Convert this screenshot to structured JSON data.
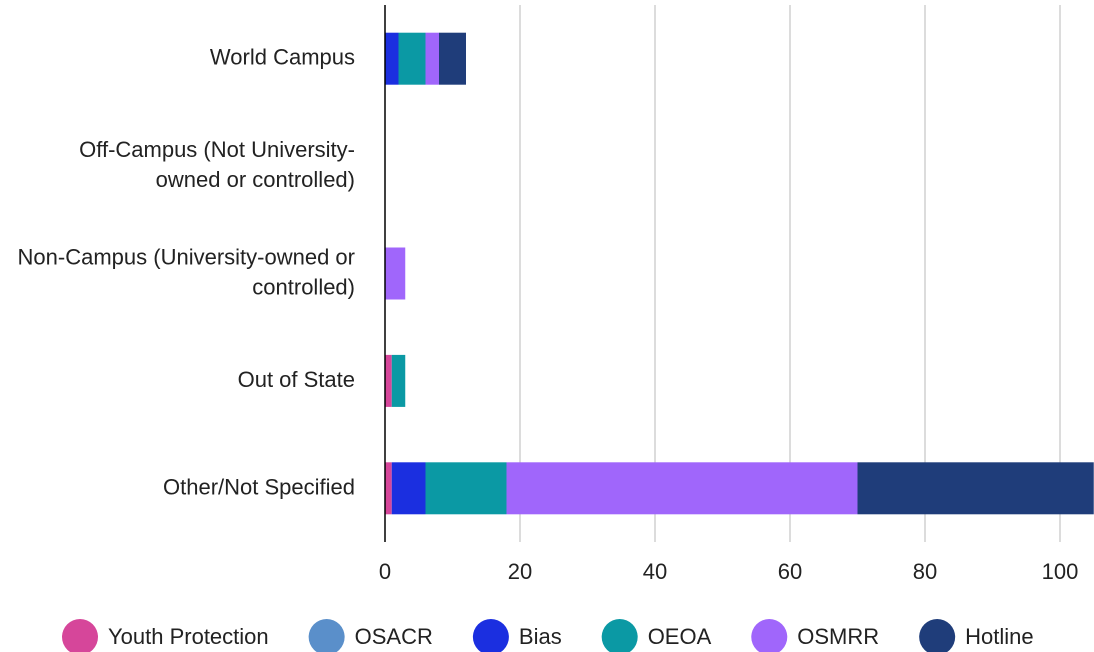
{
  "chart_data": {
    "type": "stacked-barh",
    "categories": [
      "World Campus",
      "Off-Campus (Not University-owned or controlled)",
      "Non-Campus (University-owned or controlled)",
      "Out of State",
      "Other/Not Specified"
    ],
    "series": [
      {
        "name": "Youth Protection",
        "color": "#d6469a",
        "values": [
          0,
          0,
          0,
          1,
          1
        ]
      },
      {
        "name": "OSACR",
        "color": "#5a8fca",
        "values": [
          0,
          0,
          0,
          0,
          0
        ]
      },
      {
        "name": "Bias",
        "color": "#1b2fe0",
        "values": [
          2,
          0,
          0,
          0,
          5
        ]
      },
      {
        "name": "OEOA",
        "color": "#0b99a4",
        "values": [
          4,
          0,
          0,
          2,
          12
        ]
      },
      {
        "name": "OSMRR",
        "color": "#a066fb",
        "values": [
          2,
          0,
          3,
          0,
          52
        ]
      },
      {
        "name": "Hotline",
        "color": "#1f3d7a",
        "values": [
          4,
          0,
          0,
          0,
          35
        ]
      }
    ],
    "xlim": [
      0,
      105
    ],
    "xticks": [
      0,
      20,
      40,
      60,
      80,
      100
    ],
    "grid": true
  }
}
